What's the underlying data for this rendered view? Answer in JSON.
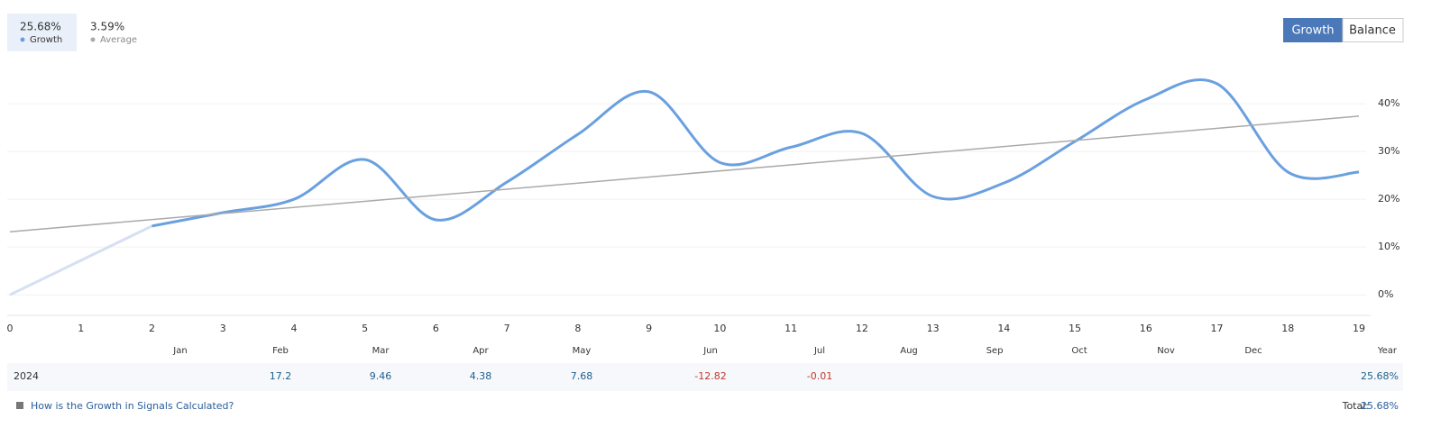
{
  "header": {
    "stats": [
      {
        "value": "25.68%",
        "label": "Growth"
      },
      {
        "value": "3.59%",
        "label": "Average"
      }
    ],
    "buttons": [
      "Growth",
      "Balance"
    ]
  },
  "chart_data": {
    "type": "line",
    "x": [
      0,
      1,
      2,
      3,
      4,
      5,
      6,
      7,
      8,
      9,
      10,
      11,
      12,
      13,
      14,
      15,
      16,
      17,
      18,
      19
    ],
    "xlim": [
      0,
      19
    ],
    "xticks": [
      0,
      1,
      2,
      3,
      4,
      5,
      6,
      7,
      8,
      9,
      10,
      11,
      12,
      13,
      14,
      15,
      16,
      17,
      18,
      19
    ],
    "ylim": [
      -4.3,
      50.4
    ],
    "yticks": [
      {
        "value": 0,
        "label": "0%"
      },
      {
        "value": 10,
        "label": "10%"
      },
      {
        "value": 20,
        "label": "20%"
      },
      {
        "value": 30,
        "label": "30%"
      },
      {
        "value": 40,
        "label": "40%"
      }
    ],
    "grid": true,
    "series": [
      {
        "color": "#d6dff3",
        "values": [
          0,
          7.2,
          14.4,
          null,
          null,
          null,
          null,
          null,
          null,
          null,
          null,
          null,
          null,
          null,
          null,
          null,
          null,
          null,
          null,
          null
        ]
      },
      {
        "name": "Growth",
        "color": "#6aa0e0",
        "values": [
          null,
          null,
          14.4,
          17.2,
          20,
          28.3,
          15.7,
          23.6,
          33.6,
          42.5,
          27.7,
          30.9,
          33.8,
          20.6,
          23.4,
          32.1,
          40.9,
          44.2,
          25.7,
          25.68
        ]
      },
      {
        "name": "Average",
        "color": "#aaaaaa",
        "x": [
          0,
          19
        ],
        "values": [
          13.2,
          37.4
        ]
      }
    ]
  },
  "table": {
    "months": [
      "Jan",
      "Feb",
      "Mar",
      "Apr",
      "May",
      "Jun",
      "Jul",
      "Aug",
      "Sep",
      "Oct",
      "Nov",
      "Dec"
    ],
    "year_header": "Year",
    "rows": [
      {
        "year": "2024",
        "values": [
          null,
          17.2,
          9.46,
          4.38,
          7.68,
          -12.82,
          -0.01,
          null,
          null,
          null,
          null,
          null
        ],
        "total": "25.68%"
      }
    ]
  },
  "footer": {
    "link": "How is the Growth in Signals Calculated?",
    "total_label": "Total:",
    "total_value": "25.68%"
  }
}
